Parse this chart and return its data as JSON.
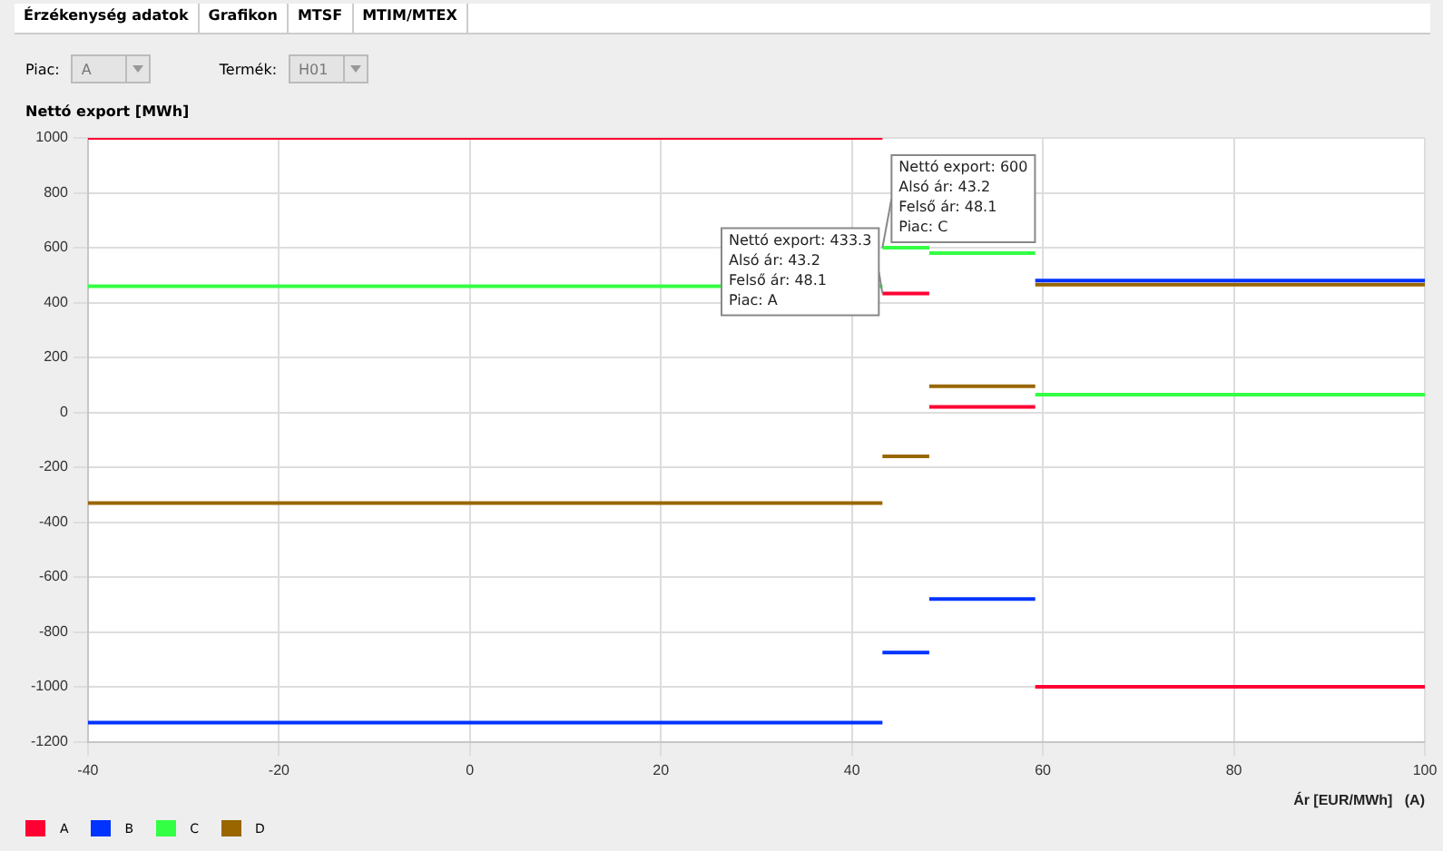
{
  "chart_data": {
    "type": "line",
    "ylabel": "Nettó export [MWh]",
    "xlabel": "Ár [EUR/MWh]   (A)",
    "annotations": [
      "Érzékenység adatok",
      "Grafikon",
      "MTSF",
      "MTIM/MTEX",
      "Piac:",
      "A",
      "Termék:",
      "H01",
      {
        "text": "Nettó export: 433.3\nAlsó ár: 43.2\nFelső ár: 48.1\nPiac: A",
        "x": 43.2,
        "y": 433.3
      },
      {
        "text": "Nettó export: 600\nAlsó ár: 43.2\nFelső ár: 48.1\nPiac: C",
        "x": 43.2,
        "y": 600
      }
    ],
    "series": [
      {
        "name": "A",
        "color": "#ff0033",
        "x": [
          -40,
          43.2,
          null,
          43.2,
          48.1,
          null,
          48.1,
          59.2,
          null,
          59.2,
          100
        ],
        "values": [
          1000,
          1000,
          null,
          433.3,
          433.3,
          null,
          20,
          20,
          null,
          -1000,
          -1000
        ]
      },
      {
        "name": "B",
        "color": "#0033ff",
        "x": [
          -40,
          43.2,
          null,
          43.2,
          48.1,
          null,
          48.1,
          59.2,
          null,
          59.2,
          100
        ],
        "values": [
          -1130,
          -1130,
          null,
          -875,
          -875,
          null,
          -680,
          -680,
          null,
          480,
          480
        ]
      },
      {
        "name": "C",
        "color": "#33ff44",
        "x": [
          -40,
          43.2,
          null,
          43.2,
          48.1,
          null,
          48.1,
          59.2,
          null,
          59.2,
          100
        ],
        "values": [
          460,
          460,
          null,
          600,
          600,
          null,
          580,
          580,
          null,
          65,
          65
        ]
      },
      {
        "name": "D",
        "color": "#996600",
        "x": [
          -40,
          43.2,
          null,
          43.2,
          48.1,
          null,
          48.1,
          59.2,
          null,
          59.2,
          100
        ],
        "values": [
          -330,
          -330,
          null,
          -160,
          -160,
          null,
          95,
          95,
          null,
          465,
          465
        ]
      }
    ],
    "xlim": [
      -40,
      100
    ],
    "xticks": [
      -40,
      -20,
      0,
      20,
      40,
      60,
      80,
      100
    ],
    "ylim": [
      -1200,
      1000
    ],
    "yticks": [
      -1200,
      -1000,
      -800,
      -600,
      -400,
      -200,
      0,
      200,
      400,
      600,
      800,
      1000
    ],
    "grid": true,
    "legend": "bottom left",
    "marker": "none",
    "line_style": "solid"
  }
}
